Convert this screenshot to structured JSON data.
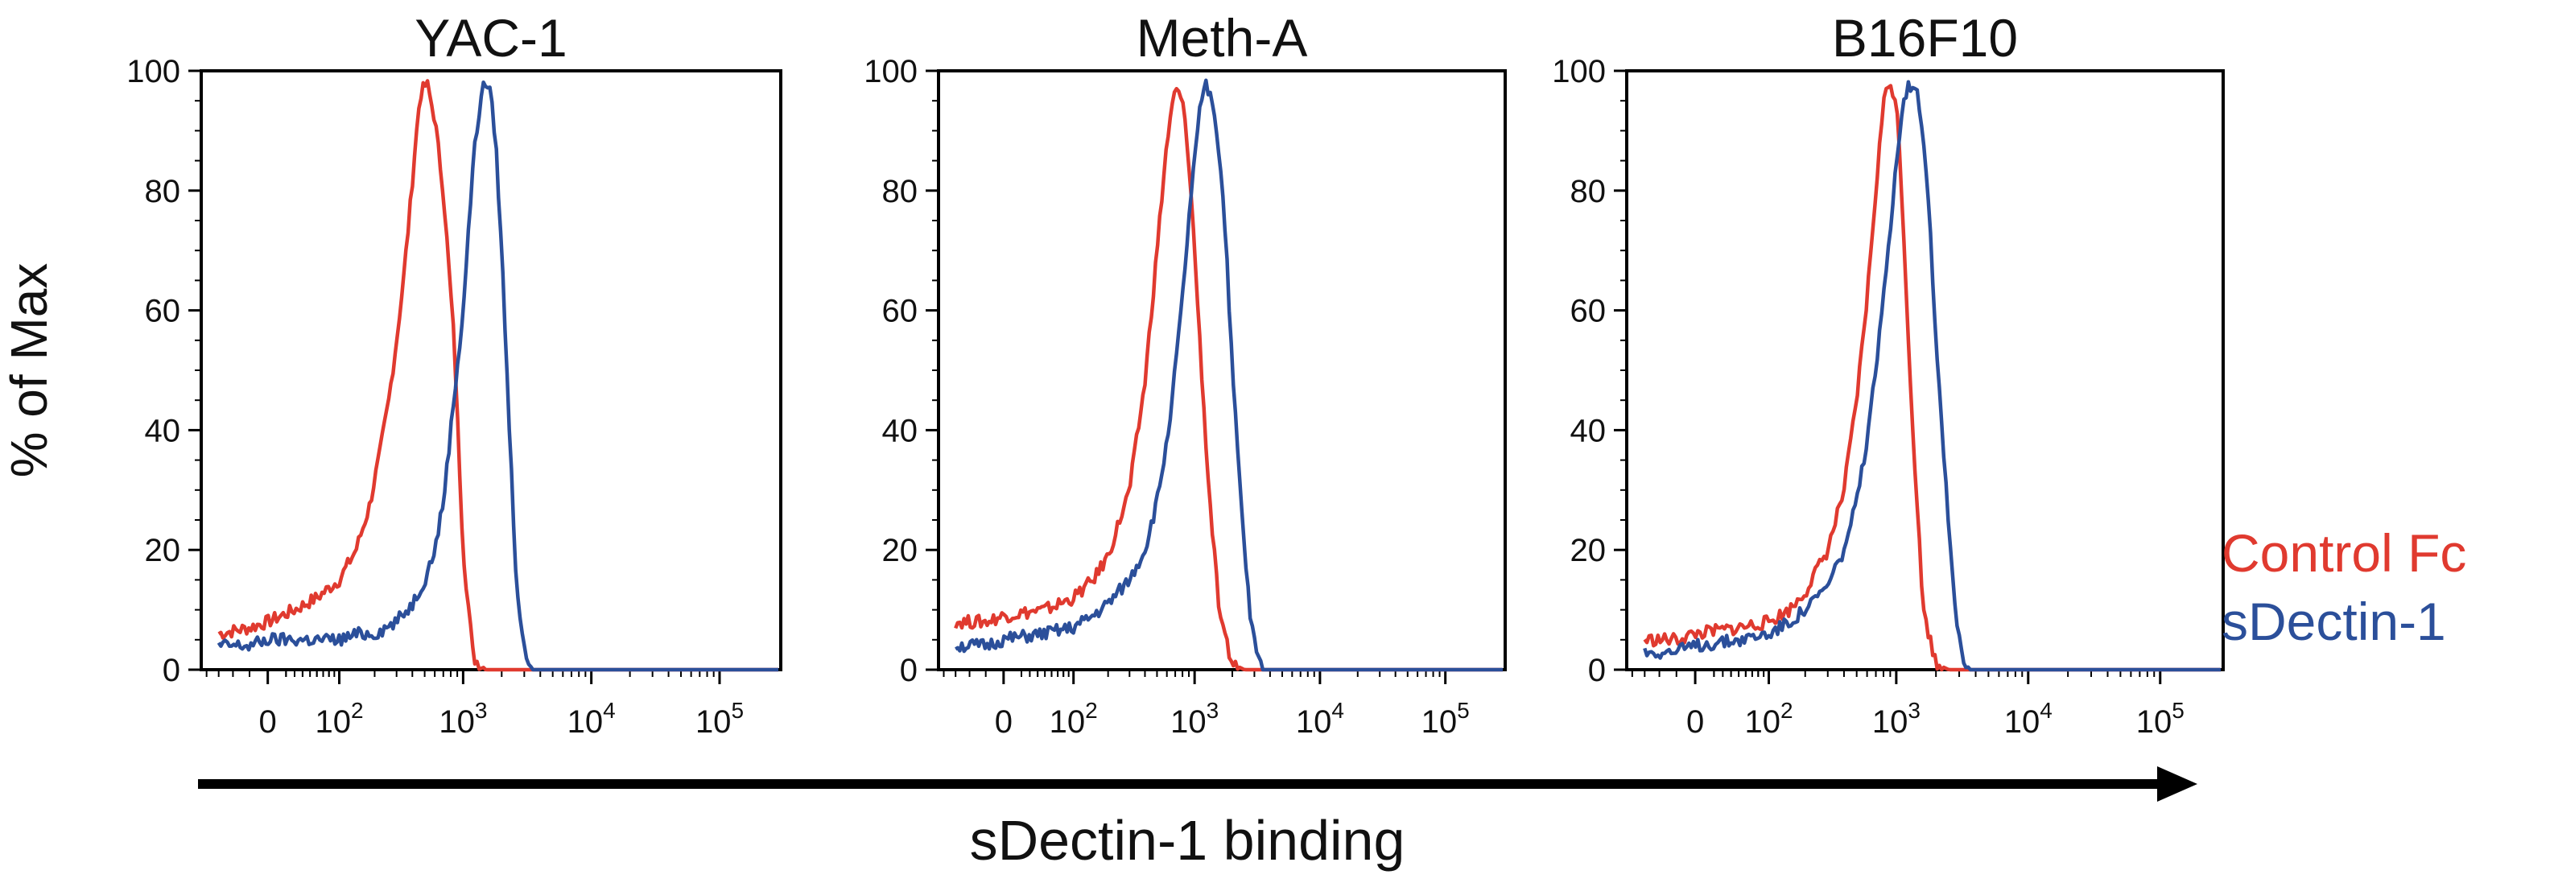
{
  "figure": {
    "ylabel": "% of Max",
    "xlabel": "sDectin-1 binding"
  },
  "legend": [
    {
      "name": "Control Fc",
      "color": "#e03a2f"
    },
    {
      "name": "sDectin-1",
      "color": "#2b4f9a"
    }
  ],
  "chart_data": [
    {
      "type": "line",
      "title": "YAC-1",
      "xscale": "biexponential",
      "xtick_labels": [
        "0",
        "10^2",
        "10^3",
        "10^4",
        "10^5"
      ],
      "xtick_values": [
        0,
        100,
        1000,
        10000,
        100000
      ],
      "ylim": [
        0,
        100
      ],
      "ytick_labels": [
        "0",
        "20",
        "40",
        "60",
        "80",
        "100"
      ],
      "series": [
        {
          "name": "Control Fc",
          "color": "#e03a2f",
          "x": [
            -60,
            -20,
            0,
            30,
            60,
            100,
            140,
            180,
            220,
            260,
            300,
            340,
            380,
            420,
            460,
            520,
            600,
            700,
            850,
            1000,
            1200,
            1500,
            3000,
            150000
          ],
          "y": [
            6,
            7,
            8,
            10,
            12,
            15,
            20,
            27,
            36,
            45,
            55,
            65,
            76,
            87,
            96,
            98,
            92,
            80,
            55,
            20,
            2,
            0,
            0,
            0
          ]
        },
        {
          "name": "sDectin-1",
          "color": "#2b4f9a",
          "x": [
            -60,
            -20,
            0,
            50,
            100,
            150,
            200,
            300,
            400,
            500,
            600,
            700,
            800,
            1000,
            1200,
            1400,
            1600,
            1800,
            2000,
            2300,
            2600,
            3000,
            3500,
            4000,
            150000
          ],
          "y": [
            4,
            4,
            5,
            5,
            5,
            6,
            6,
            8,
            11,
            15,
            20,
            28,
            40,
            60,
            85,
            97,
            98,
            88,
            70,
            40,
            15,
            3,
            0,
            0,
            0
          ]
        }
      ]
    },
    {
      "type": "line",
      "title": "Meth-A",
      "xscale": "biexponential",
      "xtick_labels": [
        "0",
        "10^2",
        "10^3",
        "10^4",
        "10^5"
      ],
      "xtick_values": [
        0,
        100,
        1000,
        10000,
        100000
      ],
      "ylim": [
        0,
        100
      ],
      "ytick_labels": [
        "0",
        "20",
        "40",
        "60",
        "80",
        "100"
      ],
      "series": [
        {
          "name": "Control Fc",
          "color": "#e03a2f",
          "x": [
            -60,
            -20,
            0,
            50,
            100,
            150,
            200,
            300,
            400,
            500,
            600,
            700,
            800,
            900,
            1000,
            1100,
            1300,
            1600,
            2000,
            2500,
            150000
          ],
          "y": [
            8,
            8,
            9,
            10,
            12,
            15,
            19,
            30,
            48,
            70,
            88,
            97,
            95,
            85,
            70,
            55,
            30,
            8,
            1,
            0,
            0
          ]
        },
        {
          "name": "sDectin-1",
          "color": "#2b4f9a",
          "x": [
            -60,
            -20,
            0,
            50,
            100,
            150,
            200,
            300,
            400,
            500,
            600,
            700,
            800,
            900,
            1000,
            1100,
            1200,
            1400,
            1600,
            1800,
            2000,
            2400,
            2800,
            3200,
            3500,
            150000
          ],
          "y": [
            4,
            4,
            5,
            6,
            7,
            9,
            11,
            15,
            20,
            28,
            38,
            50,
            62,
            75,
            85,
            93,
            98,
            95,
            85,
            70,
            50,
            25,
            8,
            2,
            0,
            0
          ]
        }
      ]
    },
    {
      "type": "line",
      "title": "B16F10",
      "xscale": "biexponential",
      "xtick_labels": [
        "0",
        "10^2",
        "10^3",
        "10^4",
        "10^5"
      ],
      "xtick_values": [
        0,
        100,
        1000,
        10000,
        100000
      ],
      "ylim": [
        0,
        100
      ],
      "ytick_labels": [
        "0",
        "20",
        "40",
        "60",
        "80",
        "100"
      ],
      "series": [
        {
          "name": "Control Fc",
          "color": "#e03a2f",
          "x": [
            -60,
            -20,
            0,
            50,
            100,
            150,
            200,
            300,
            400,
            500,
            600,
            700,
            800,
            900,
            1000,
            1100,
            1300,
            1600,
            2000,
            2500,
            150000
          ],
          "y": [
            5,
            5,
            6,
            7,
            8,
            10,
            13,
            20,
            30,
            45,
            62,
            80,
            95,
            98,
            95,
            80,
            45,
            10,
            1,
            0,
            0
          ]
        },
        {
          "name": "sDectin-1",
          "color": "#2b4f9a",
          "x": [
            -60,
            -20,
            0,
            50,
            100,
            150,
            200,
            300,
            400,
            500,
            600,
            700,
            800,
            900,
            1000,
            1100,
            1200,
            1400,
            1600,
            1800,
            2000,
            2400,
            2800,
            3200,
            3600,
            150000
          ],
          "y": [
            3,
            3,
            4,
            5,
            6,
            8,
            10,
            14,
            20,
            28,
            38,
            50,
            62,
            74,
            85,
            93,
            97,
            98,
            90,
            75,
            55,
            30,
            10,
            2,
            0,
            0
          ]
        }
      ]
    }
  ]
}
